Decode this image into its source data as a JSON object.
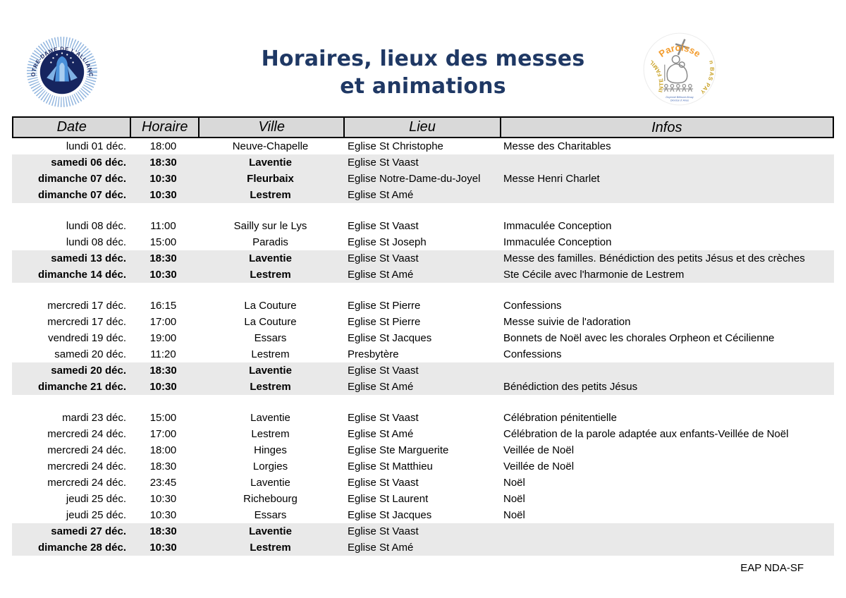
{
  "theme": {
    "title_color": "#1f3864",
    "header_bg_color": "#d9d9d9",
    "row_highlight_color": "#e9e9e9",
    "logo_orange": "#f39c2d",
    "logo_gold": "#c9a227",
    "logo_navy": "#16255f"
  },
  "header": {
    "title_line1": "Horaires, lieux des messes",
    "title_line2": "et animations",
    "left_logo": {
      "arc_text": "NOTRE-DAME DE L'ALLIANCE"
    },
    "right_logo": {
      "top_text": "Paroisse",
      "left_text": "SAINTE FAMILLE",
      "right_text": "En BAS PAYS",
      "sub_text1": "Doyenné Béthune-Bruay",
      "sub_text2": "Diocèse d' Arras"
    }
  },
  "table": {
    "columns": [
      "Date",
      "Horaire",
      "Ville",
      "Lieu",
      "Infos"
    ],
    "rows": [
      {
        "date": "lundi 01 déc.",
        "horaire": "18:00",
        "ville": "Neuve-Chapelle",
        "lieu": "Eglise St Christophe",
        "infos": "Messe des Charitables",
        "highlight": false
      },
      {
        "date": "samedi 06 déc.",
        "horaire": "18:30",
        "ville": "Laventie",
        "lieu": "Eglise St Vaast",
        "infos": "",
        "highlight": true
      },
      {
        "date": "dimanche 07 déc.",
        "horaire": "10:30",
        "ville": "Fleurbaix",
        "lieu": "Eglise Notre-Dame-du-Joyel",
        "infos": "Messe Henri Charlet",
        "highlight": true
      },
      {
        "date": "dimanche 07 déc.",
        "horaire": "10:30",
        "ville": "Lestrem",
        "lieu": "Eglise St Amé",
        "infos": "",
        "highlight": true
      },
      {
        "spacer": true
      },
      {
        "date": "lundi 08 déc.",
        "horaire": "11:00",
        "ville": "Sailly sur le Lys",
        "lieu": "Eglise St Vaast",
        "infos": "Immaculée Conception",
        "highlight": false
      },
      {
        "date": "lundi 08 déc.",
        "horaire": "15:00",
        "ville": "Paradis",
        "lieu": "Eglise St Joseph",
        "infos": "Immaculée Conception",
        "highlight": false
      },
      {
        "date": "samedi 13 déc.",
        "horaire": "18:30",
        "ville": "Laventie",
        "lieu": "Eglise St Vaast",
        "infos": "Messe des familles. Bénédiction des petits Jésus et des crèches",
        "highlight": true
      },
      {
        "date": "dimanche 14 déc.",
        "horaire": "10:30",
        "ville": "Lestrem",
        "lieu": "Eglise St Amé",
        "infos": "Ste Cécile avec l'harmonie de Lestrem",
        "highlight": true
      },
      {
        "spacer": true
      },
      {
        "date": "mercredi 17 déc.",
        "horaire": "16:15",
        "ville": "La Couture",
        "lieu": "Eglise St Pierre",
        "infos": "Confessions",
        "highlight": false
      },
      {
        "date": "mercredi 17 déc.",
        "horaire": "17:00",
        "ville": "La Couture",
        "lieu": "Eglise St Pierre",
        "infos": "Messe suivie de l'adoration",
        "highlight": false
      },
      {
        "date": "vendredi 19 déc.",
        "horaire": "19:00",
        "ville": "Essars",
        "lieu": "Eglise St Jacques",
        "infos": "Bonnets de Noël avec les chorales Orpheon et Cécilienne",
        "highlight": false
      },
      {
        "date": "samedi 20 déc.",
        "horaire": "11:20",
        "ville": "Lestrem",
        "lieu": "Presbytère",
        "infos": "Confessions",
        "highlight": false
      },
      {
        "date": "samedi 20 déc.",
        "horaire": "18:30",
        "ville": "Laventie",
        "lieu": "Eglise St Vaast",
        "infos": "",
        "highlight": true
      },
      {
        "date": "dimanche 21 déc.",
        "horaire": "10:30",
        "ville": "Lestrem",
        "lieu": "Eglise St Amé",
        "infos": "Bénédiction des petits Jésus",
        "highlight": true
      },
      {
        "spacer": true
      },
      {
        "date": "mardi 23 déc.",
        "horaire": "15:00",
        "ville": "Laventie",
        "lieu": "Eglise St Vaast",
        "infos": "Célébration pénitentielle",
        "highlight": false
      },
      {
        "date": "mercredi 24 déc.",
        "horaire": "17:00",
        "ville": "Lestrem",
        "lieu": "Eglise St Amé",
        "infos": "Célébration de la parole adaptée aux enfants-Veillée de Noël",
        "highlight": false
      },
      {
        "date": "mercredi 24 déc.",
        "horaire": "18:00",
        "ville": "Hinges",
        "lieu": "Eglise Ste Marguerite",
        "infos": "Veillée de Noël",
        "highlight": false
      },
      {
        "date": "mercredi 24 déc.",
        "horaire": "18:30",
        "ville": "Lorgies",
        "lieu": "Eglise St Matthieu",
        "infos": "Veillée de Noël",
        "highlight": false
      },
      {
        "date": "mercredi 24 déc.",
        "horaire": "23:45",
        "ville": "Laventie",
        "lieu": "Eglise St Vaast",
        "infos": "Noël",
        "highlight": false
      },
      {
        "date": "jeudi 25 déc.",
        "horaire": "10:30",
        "ville": "Richebourg",
        "lieu": "Eglise St Laurent",
        "infos": "Noël",
        "highlight": false
      },
      {
        "date": "jeudi 25 déc.",
        "horaire": "10:30",
        "ville": "Essars",
        "lieu": "Eglise St Jacques",
        "infos": "Noël",
        "highlight": false
      },
      {
        "date": "samedi 27 déc.",
        "horaire": "18:30",
        "ville": "Laventie",
        "lieu": "Eglise St Vaast",
        "infos": "",
        "highlight": true
      },
      {
        "date": "dimanche 28 déc.",
        "horaire": "10:30",
        "ville": "Lestrem",
        "lieu": "Eglise St Amé",
        "infos": "",
        "highlight": true
      }
    ]
  },
  "footer": {
    "text": "EAP NDA-SF"
  }
}
